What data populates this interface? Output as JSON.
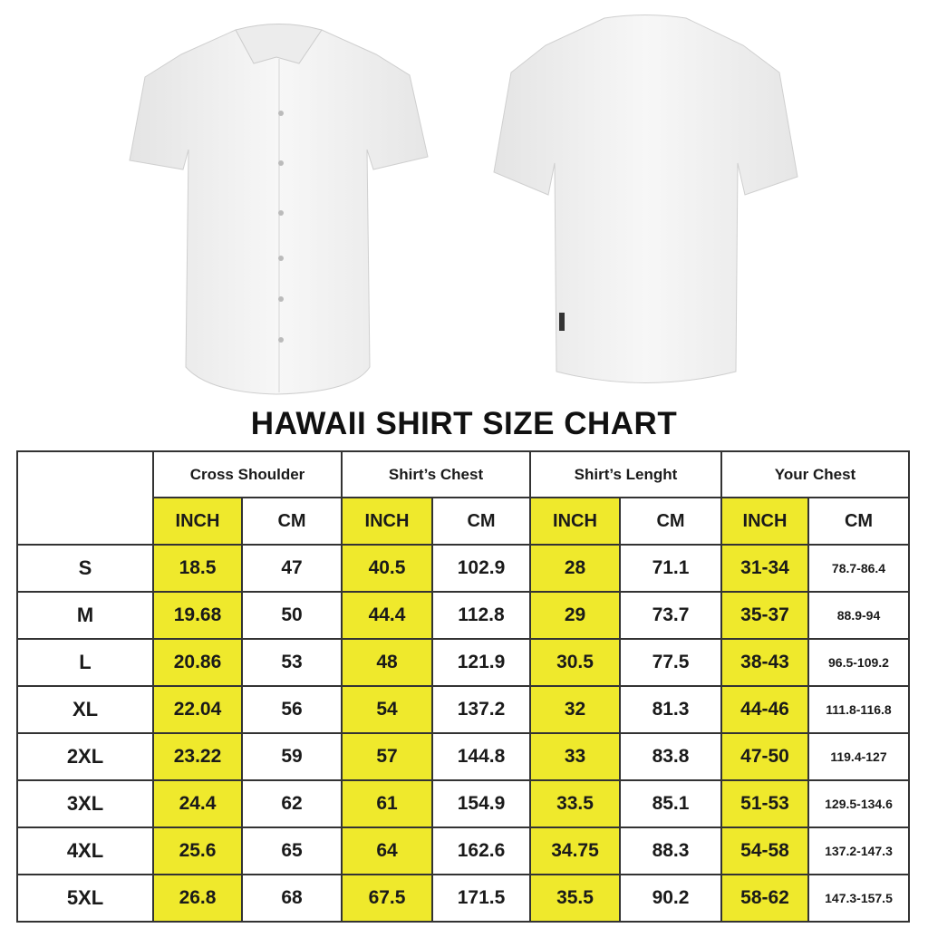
{
  "title": "HAWAII SHIRT SIZE CHART",
  "colors": {
    "highlight": "#efe92c",
    "border": "#333333",
    "shirt": "#f2f2f2"
  },
  "groups": [
    "Cross Shoulder",
    "Shirt’s Chest",
    "Shirt’s Lenght",
    "Your Chest"
  ],
  "units": [
    "INCH",
    "CM"
  ],
  "rows": [
    {
      "size": "S",
      "values": [
        "18.5",
        "47",
        "40.5",
        "102.9",
        "28",
        "71.1",
        "31-34",
        "78.7-86.4"
      ]
    },
    {
      "size": "M",
      "values": [
        "19.68",
        "50",
        "44.4",
        "112.8",
        "29",
        "73.7",
        "35-37",
        "88.9-94"
      ]
    },
    {
      "size": "L",
      "values": [
        "20.86",
        "53",
        "48",
        "121.9",
        "30.5",
        "77.5",
        "38-43",
        "96.5-109.2"
      ]
    },
    {
      "size": "XL",
      "values": [
        "22.04",
        "56",
        "54",
        "137.2",
        "32",
        "81.3",
        "44-46",
        "111.8-116.8"
      ]
    },
    {
      "size": "2XL",
      "values": [
        "23.22",
        "59",
        "57",
        "144.8",
        "33",
        "83.8",
        "47-50",
        "119.4-127"
      ]
    },
    {
      "size": "3XL",
      "values": [
        "24.4",
        "62",
        "61",
        "154.9",
        "33.5",
        "85.1",
        "51-53",
        "129.5-134.6"
      ]
    },
    {
      "size": "4XL",
      "values": [
        "25.6",
        "65",
        "64",
        "162.6",
        "34.75",
        "88.3",
        "54-58",
        "137.2-147.3"
      ]
    },
    {
      "size": "5XL",
      "values": [
        "26.8",
        "68",
        "67.5",
        "171.5",
        "35.5",
        "90.2",
        "58-62",
        "147.3-157.5"
      ]
    }
  ]
}
